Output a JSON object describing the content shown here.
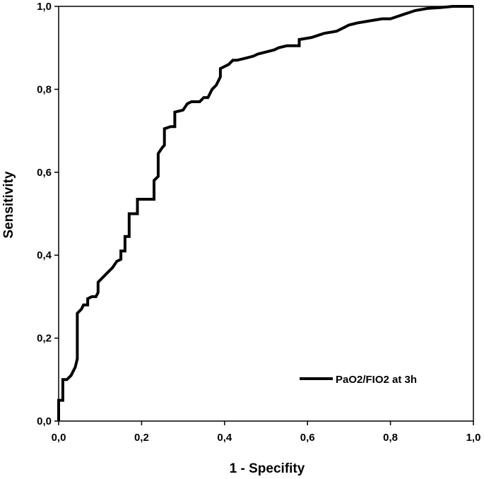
{
  "chart_data": {
    "type": "line",
    "title": "",
    "xlabel": "1 - Specifity",
    "ylabel": "Sensitivity",
    "xlim": [
      0,
      1
    ],
    "ylim": [
      0,
      1
    ],
    "x_ticks": [
      "0,0",
      "0,2",
      "0,4",
      "0,6",
      "0,8",
      "1,0"
    ],
    "y_ticks": [
      "0,0",
      "0,2",
      "0,4",
      "0,6",
      "0,8",
      "1,0"
    ],
    "grid": false,
    "legend_position": "bottom-right",
    "series": [
      {
        "name": "PaO2/FIO2 at 3h",
        "color": "#000000",
        "points": [
          [
            0.0,
            0.0
          ],
          [
            0.0,
            0.05
          ],
          [
            0.01,
            0.05
          ],
          [
            0.01,
            0.1
          ],
          [
            0.02,
            0.1
          ],
          [
            0.03,
            0.11
          ],
          [
            0.04,
            0.13
          ],
          [
            0.045,
            0.15
          ],
          [
            0.045,
            0.26
          ],
          [
            0.055,
            0.27
          ],
          [
            0.06,
            0.28
          ],
          [
            0.07,
            0.28
          ],
          [
            0.07,
            0.295
          ],
          [
            0.08,
            0.3
          ],
          [
            0.09,
            0.3
          ],
          [
            0.095,
            0.31
          ],
          [
            0.095,
            0.335
          ],
          [
            0.11,
            0.35
          ],
          [
            0.12,
            0.36
          ],
          [
            0.13,
            0.37
          ],
          [
            0.14,
            0.385
          ],
          [
            0.15,
            0.39
          ],
          [
            0.15,
            0.41
          ],
          [
            0.16,
            0.41
          ],
          [
            0.16,
            0.445
          ],
          [
            0.17,
            0.445
          ],
          [
            0.17,
            0.5
          ],
          [
            0.19,
            0.5
          ],
          [
            0.19,
            0.535
          ],
          [
            0.23,
            0.535
          ],
          [
            0.23,
            0.58
          ],
          [
            0.24,
            0.59
          ],
          [
            0.24,
            0.645
          ],
          [
            0.25,
            0.66
          ],
          [
            0.255,
            0.665
          ],
          [
            0.255,
            0.705
          ],
          [
            0.27,
            0.71
          ],
          [
            0.28,
            0.71
          ],
          [
            0.28,
            0.745
          ],
          [
            0.3,
            0.75
          ],
          [
            0.31,
            0.765
          ],
          [
            0.32,
            0.77
          ],
          [
            0.34,
            0.77
          ],
          [
            0.35,
            0.78
          ],
          [
            0.36,
            0.78
          ],
          [
            0.37,
            0.8
          ],
          [
            0.38,
            0.81
          ],
          [
            0.39,
            0.83
          ],
          [
            0.39,
            0.85
          ],
          [
            0.4,
            0.855
          ],
          [
            0.41,
            0.86
          ],
          [
            0.42,
            0.87
          ],
          [
            0.43,
            0.87
          ],
          [
            0.45,
            0.875
          ],
          [
            0.47,
            0.88
          ],
          [
            0.48,
            0.885
          ],
          [
            0.5,
            0.89
          ],
          [
            0.52,
            0.895
          ],
          [
            0.53,
            0.9
          ],
          [
            0.55,
            0.905
          ],
          [
            0.58,
            0.905
          ],
          [
            0.58,
            0.92
          ],
          [
            0.61,
            0.925
          ],
          [
            0.64,
            0.935
          ],
          [
            0.67,
            0.94
          ],
          [
            0.69,
            0.95
          ],
          [
            0.7,
            0.955
          ],
          [
            0.72,
            0.96
          ],
          [
            0.75,
            0.965
          ],
          [
            0.78,
            0.97
          ],
          [
            0.8,
            0.97
          ],
          [
            0.83,
            0.98
          ],
          [
            0.86,
            0.99
          ],
          [
            0.89,
            0.995
          ],
          [
            0.92,
            0.997
          ],
          [
            0.95,
            1.0
          ],
          [
            0.98,
            1.0
          ],
          [
            1.0,
            1.0
          ]
        ]
      }
    ]
  }
}
